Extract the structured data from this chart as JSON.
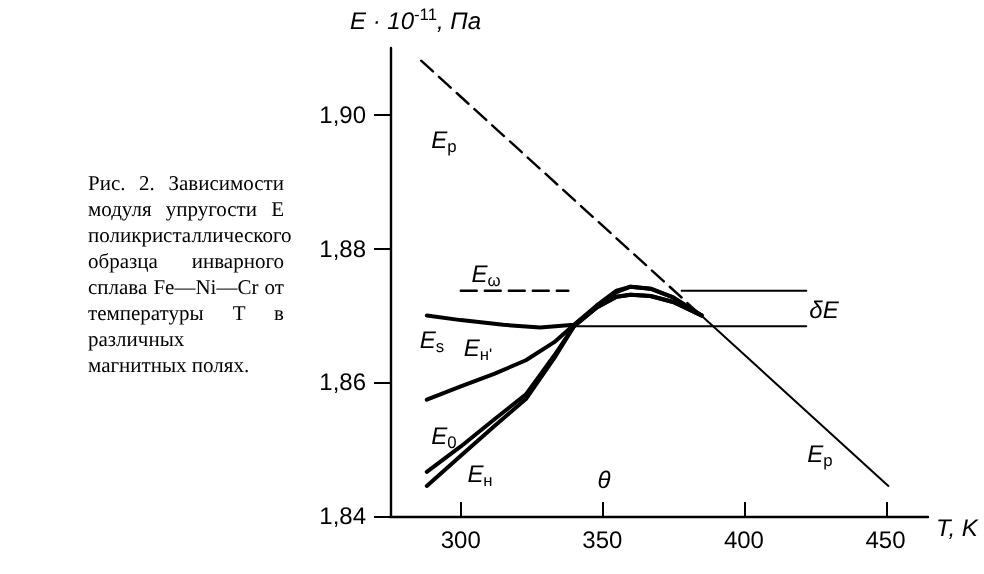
{
  "chart_data": {
    "type": "line",
    "xlabel": "T, K",
    "ylabel": "E · 10$^{-11}$, Па",
    "xlim": [
      275,
      465
    ],
    "ylim": [
      1.84,
      1.91
    ],
    "xticks": [
      300,
      350,
      400,
      450
    ],
    "yticks": [
      {
        "value": 1.84,
        "label": "1,84"
      },
      {
        "value": 1.86,
        "label": "1,86"
      },
      {
        "value": 1.88,
        "label": "1,88"
      },
      {
        "value": 1.9,
        "label": "1,90"
      }
    ],
    "grid": false,
    "marker": "none",
    "series": [
      {
        "color": "#000000",
        "line_style": "dashed",
        "x": [
          286,
          380
        ],
        "values": [
          1.9081,
          1.8719
        ]
      },
      {
        "color": "#000000",
        "line_style": "solid",
        "x": [
          380,
          451
        ],
        "values": [
          1.8719,
          1.8445
        ]
      },
      {
        "color": "#000000",
        "line_style": "solid",
        "x": [
          288,
          300,
          315,
          328,
          340,
          348,
          355,
          360,
          367,
          375,
          385
        ],
        "values": [
          1.87,
          1.8693,
          1.8686,
          1.8682,
          1.8686,
          1.8712,
          1.8735,
          1.8743,
          1.874,
          1.8727,
          1.87
        ]
      },
      {
        "color": "#000000",
        "line_style": "solid",
        "x": [
          288,
          300,
          312,
          323,
          333,
          340,
          348,
          355,
          360,
          367,
          375,
          385
        ],
        "values": [
          1.8574,
          1.8594,
          1.8613,
          1.8633,
          1.866,
          1.8686,
          1.8715,
          1.8737,
          1.8743,
          1.874,
          1.8727,
          1.87
        ]
      },
      {
        "color": "#000000",
        "line_style": "solid",
        "x": [
          288,
          300,
          312,
          323,
          333,
          340,
          348,
          355,
          360,
          367,
          375,
          385
        ],
        "values": [
          1.8466,
          1.8504,
          1.8545,
          1.8582,
          1.864,
          1.8684,
          1.8712,
          1.8728,
          1.8731,
          1.8729,
          1.872,
          1.87
        ]
      },
      {
        "color": "#000000",
        "line_style": "solid",
        "x": [
          288,
          300,
          312,
          323,
          333,
          340,
          348,
          355,
          360,
          367,
          375,
          385
        ],
        "values": [
          1.8445,
          1.849,
          1.8535,
          1.8575,
          1.8636,
          1.8684,
          1.8712,
          1.8728,
          1.8731,
          1.8729,
          1.872,
          1.87
        ]
      },
      {
        "color": "#000000",
        "line_style": "dashed",
        "x": [
          300,
          338
        ],
        "values": [
          1.8737,
          1.8737
        ]
      },
      {
        "color": "#000000",
        "line_style": "solid",
        "x": [
          378,
          422
        ],
        "values": [
          1.8737,
          1.8737
        ]
      },
      {
        "color": "#000000",
        "line_style": "solid",
        "x": [
          340,
          422
        ],
        "values": [
          1.8684,
          1.8684
        ]
      }
    ],
    "annotations": [
      "Рис. 2. Зависимости модуля упругости E поликристаллического образца инварного сплава Fe—Ni—Cr от температуры T в различных магнитных полях.",
      "E$_{p}$",
      "E$_{p}$",
      "E$_{ω}$",
      "E$_{s}$",
      "E$_{н'}$",
      "E$_{0}$",
      "E$_{н}$",
      "θ",
      "δE"
    ]
  }
}
